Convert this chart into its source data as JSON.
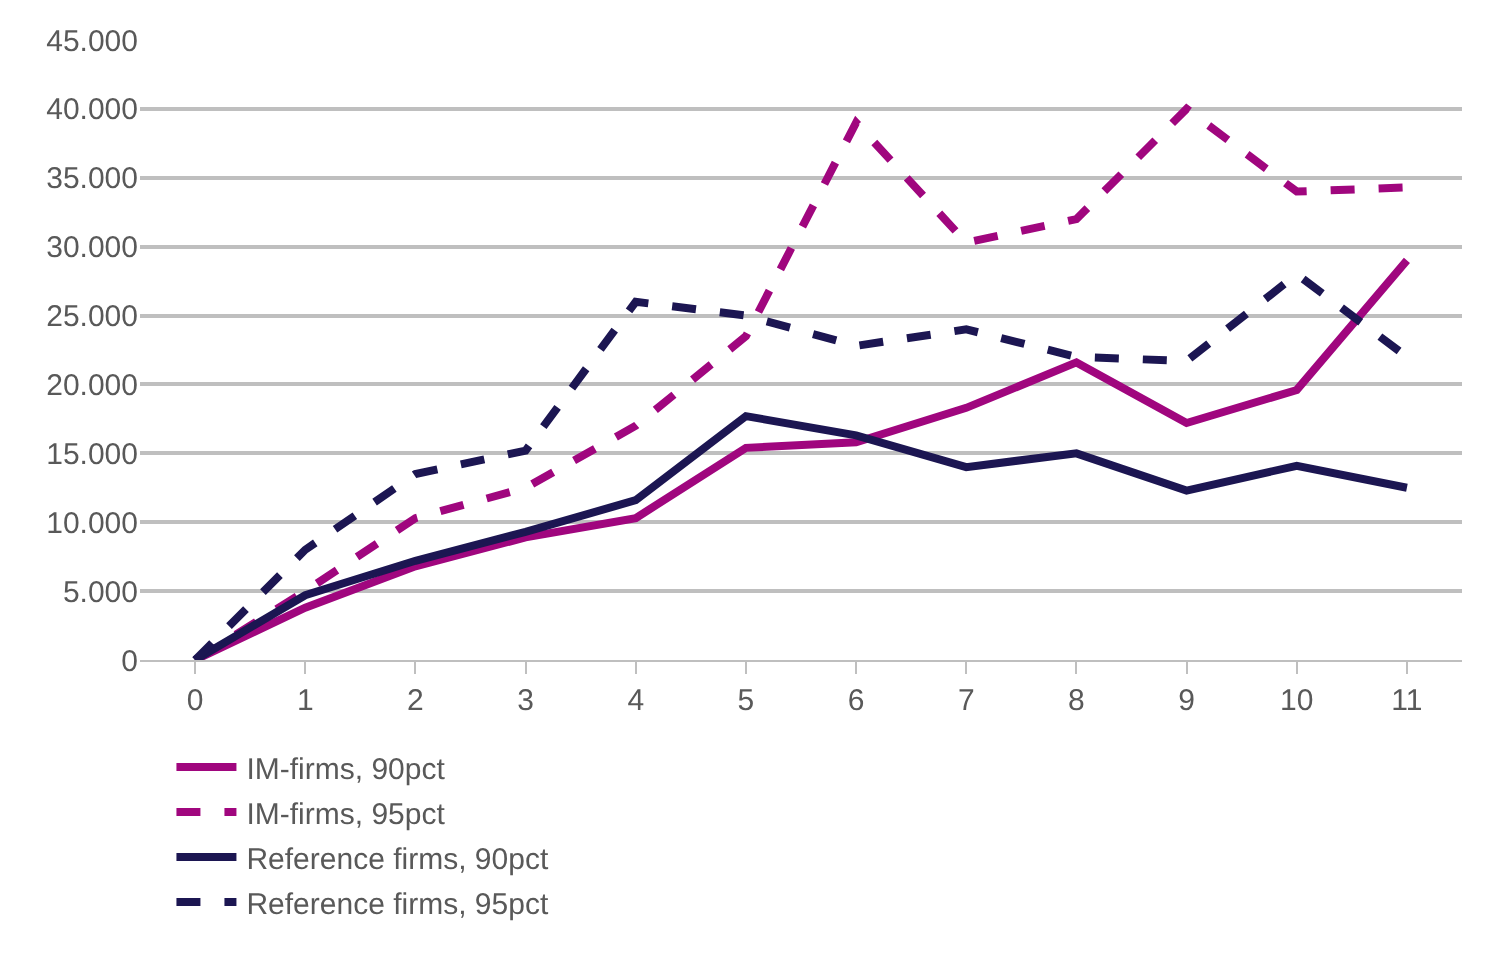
{
  "chart_data": {
    "type": "line",
    "x": [
      0,
      1,
      2,
      3,
      4,
      5,
      6,
      7,
      8,
      9,
      10,
      11
    ],
    "series": [
      {
        "name": "IM-firms, 90pct",
        "color": "#a0067e",
        "line_style": "solid",
        "values": [
          0,
          3800,
          6800,
          8900,
          10300,
          15400,
          15800,
          18300,
          21600,
          17200,
          19600,
          29000
        ]
      },
      {
        "name": "IM-firms, 95pct",
        "color": "#a0067e",
        "line_style": "dashed",
        "values": [
          0,
          5000,
          10300,
          12500,
          17000,
          23500,
          39000,
          30300,
          32000,
          40000,
          34000,
          34300
        ]
      },
      {
        "name": "Reference firms, 90pct",
        "color": "#1c1652",
        "line_style": "solid",
        "values": [
          0,
          4700,
          7200,
          9300,
          11600,
          17700,
          16300,
          14000,
          15000,
          12300,
          14100,
          12500
        ]
      },
      {
        "name": "Reference firms, 95pct",
        "color": "#1c1652",
        "line_style": "dashed",
        "values": [
          0,
          8000,
          13500,
          15200,
          26000,
          25000,
          22800,
          24000,
          22000,
          21700,
          28000,
          22000
        ]
      }
    ],
    "xlim": [
      -0.5,
      11.5
    ],
    "xticks": [
      0,
      1,
      2,
      3,
      4,
      5,
      6,
      7,
      8,
      9,
      10,
      11
    ],
    "ylim": [
      0,
      45000
    ],
    "yticks": [
      0,
      {
        "value": 5000,
        "label": "5.000"
      },
      {
        "value": 10000,
        "label": "10.000"
      },
      {
        "value": 15000,
        "label": "15.000"
      },
      {
        "value": 20000,
        "label": "20.000"
      },
      {
        "value": 25000,
        "label": "25.000"
      },
      {
        "value": 30000,
        "label": "30.000"
      },
      {
        "value": 35000,
        "label": "35.000"
      },
      {
        "value": 40000,
        "label": "40.000"
      },
      {
        "value": 45000,
        "label": "45.000"
      }
    ],
    "grid": "y",
    "legend": "bottom",
    "marker": "none"
  }
}
